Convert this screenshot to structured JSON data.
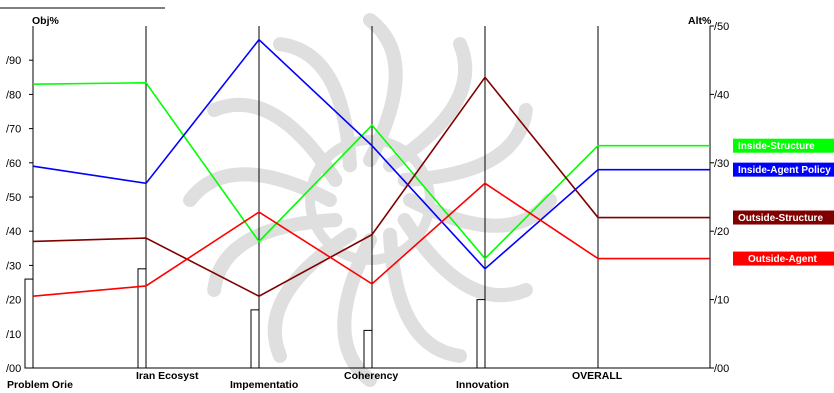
{
  "chart_data": {
    "type": "line",
    "left_axis_label": "Obj%",
    "right_axis_label": "Alt%",
    "categories": [
      "Problem Orie",
      "Iran Ecosyst",
      "Impementatio",
      "Coherency",
      "Innovation",
      "OVERALL"
    ],
    "left_axis": {
      "ylim": [
        0,
        100
      ],
      "ticks": [
        0,
        10,
        20,
        30,
        40,
        50,
        60,
        70,
        80,
        90
      ],
      "tick_labels": [
        "/00",
        "/10",
        "/20",
        "/30",
        "/40",
        "/50",
        "/60",
        "/70",
        "/80",
        "/90"
      ]
    },
    "right_axis": {
      "ylim": [
        0,
        50
      ],
      "ticks": [
        0,
        10,
        20,
        30,
        40,
        50
      ],
      "tick_labels": [
        "/00",
        "/10",
        "/20",
        "/30",
        "/40",
        "/50"
      ]
    },
    "bars": {
      "axis": "left",
      "values": [
        26,
        29,
        17,
        11,
        20,
        0
      ]
    },
    "series": [
      {
        "name": "Inside-Structure",
        "color": "#00ff00",
        "values": [
          41.5,
          41.7,
          18.5,
          35.5,
          16.0,
          32.5
        ]
      },
      {
        "name": "Inside-Agent Policy",
        "color": "#0000ff",
        "values": [
          29.5,
          27.0,
          48.0,
          32.5,
          14.5,
          29.0
        ]
      },
      {
        "name": "Outside-Structure",
        "color": "#800000",
        "values": [
          18.5,
          19.0,
          10.5,
          19.5,
          42.5,
          22.0
        ]
      },
      {
        "name": "Outside-Agent",
        "color": "#ff0000",
        "values": [
          10.5,
          12.0,
          22.8,
          12.3,
          27.0,
          16.0
        ]
      }
    ],
    "grid": "vertical lines at each category",
    "legend_position": "right"
  }
}
